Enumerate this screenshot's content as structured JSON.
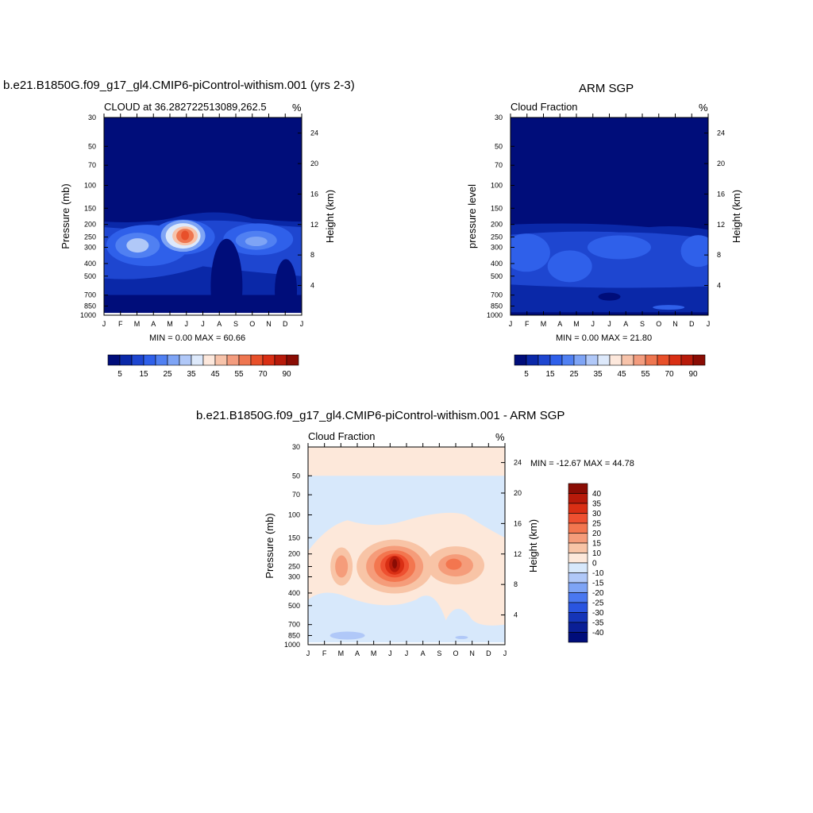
{
  "chart_data": [
    {
      "type": "heatmap",
      "title": "b.e21.B1850G.f09_g17_gl4.CMIP6-piControl-withism.001 (yrs 2-3)",
      "subtitle": "CLOUD at 36.282722513089,262.5",
      "units": "%",
      "ylabel": "Pressure (mb)",
      "y2label": "Height (km)",
      "x_ticks": [
        "J",
        "F",
        "M",
        "A",
        "M",
        "J",
        "J",
        "A",
        "S",
        "O",
        "N",
        "D",
        "J"
      ],
      "pressure_ticks": [
        30,
        50,
        70,
        100,
        150,
        200,
        250,
        300,
        400,
        500,
        700,
        850,
        1000
      ],
      "height_ticks": [
        24,
        20,
        16,
        12,
        8,
        4
      ],
      "ylim": [
        30,
        1000
      ],
      "stats": "MIN =   0.00 MAX =  60.66",
      "colorbar": {
        "orientation": "horizontal",
        "labels": [
          "5",
          "15",
          "25",
          "35",
          "45",
          "55",
          "70",
          "90"
        ],
        "colors": [
          "#000d7a",
          "#0a28a8",
          "#1e46d0",
          "#2f60ea",
          "#5080f2",
          "#7ea4f5",
          "#b0c8f8",
          "#dde9fb",
          "#fde8dc",
          "#f7c3aa",
          "#f39c7e",
          "#ee7650",
          "#e8502a",
          "#d92f14",
          "#b71a0a",
          "#8a0c04"
        ]
      }
    },
    {
      "type": "heatmap",
      "title": "ARM SGP",
      "subtitle": "Cloud Fraction",
      "units": "%",
      "ylabel": "pressure level",
      "y2label": "Height (km)",
      "x_ticks": [
        "J",
        "F",
        "M",
        "A",
        "M",
        "J",
        "J",
        "A",
        "S",
        "O",
        "N",
        "D",
        "J"
      ],
      "pressure_ticks": [
        30,
        50,
        70,
        100,
        150,
        200,
        250,
        300,
        400,
        500,
        700,
        850,
        1000
      ],
      "height_ticks": [
        24,
        20,
        16,
        12,
        8,
        4
      ],
      "ylim": [
        30,
        1000
      ],
      "stats": "MIN =   0.00 MAX =  21.80",
      "colorbar": {
        "orientation": "horizontal",
        "labels": [
          "5",
          "15",
          "25",
          "35",
          "45",
          "55",
          "70",
          "90"
        ],
        "colors": [
          "#000d7a",
          "#0a28a8",
          "#1e46d0",
          "#2f60ea",
          "#5080f2",
          "#7ea4f5",
          "#b0c8f8",
          "#dde9fb",
          "#fde8dc",
          "#f7c3aa",
          "#f39c7e",
          "#ee7650",
          "#e8502a",
          "#d92f14",
          "#b71a0a",
          "#8a0c04"
        ]
      }
    },
    {
      "type": "heatmap",
      "title": "b.e21.B1850G.f09_g17_gl4.CMIP6-piControl-withism.001 - ARM SGP",
      "subtitle": "Cloud Fraction",
      "units": "%",
      "ylabel": "Pressure (mb)",
      "y2label": "Height (km)",
      "x_ticks": [
        "J",
        "F",
        "M",
        "A",
        "M",
        "J",
        "J",
        "A",
        "S",
        "O",
        "N",
        "D",
        "J"
      ],
      "pressure_ticks": [
        30,
        50,
        70,
        100,
        150,
        200,
        250,
        300,
        400,
        500,
        700,
        850,
        1000
      ],
      "height_ticks": [
        24,
        20,
        16,
        12,
        8,
        4
      ],
      "ylim": [
        30,
        1000
      ],
      "stats": "MIN = -12.67 MAX =  44.78",
      "colorbar": {
        "orientation": "vertical",
        "labels": [
          "40",
          "35",
          "30",
          "25",
          "20",
          "15",
          "10",
          "0",
          "-10",
          "-15",
          "-20",
          "-25",
          "-30",
          "-35",
          "-40"
        ],
        "colors": [
          "#8a0c04",
          "#b71a0a",
          "#d92f14",
          "#ee5030",
          "#f3764f",
          "#f59c7a",
          "#f8c4a6",
          "#fde8da",
          "#d7e8fb",
          "#b0c8f8",
          "#7ea4f5",
          "#4a78f0",
          "#2a55e0",
          "#1535b8",
          "#0a1f96",
          "#000d7a"
        ]
      }
    }
  ]
}
